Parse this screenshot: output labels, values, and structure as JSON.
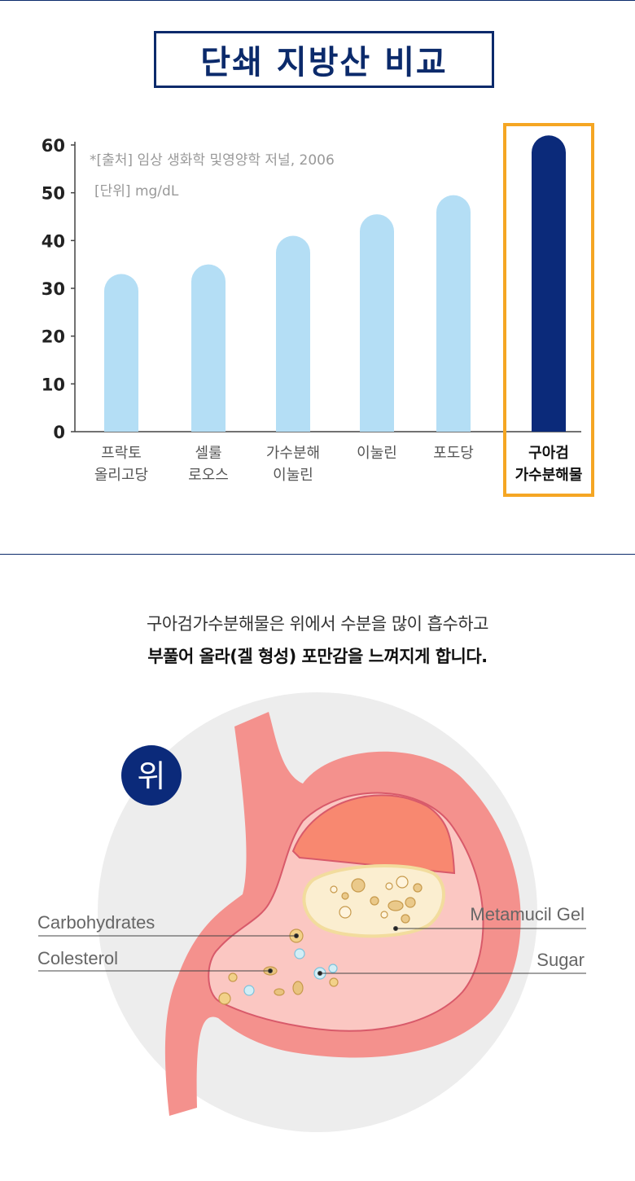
{
  "page_title": "단쇄 지방산 비교",
  "chart_data": {
    "type": "bar",
    "source_note": "*[출처] 임상 생화학 및영양학 저널, 2006",
    "unit_note": "[단위] mg/dL",
    "ylim": [
      0,
      60
    ],
    "yticks": [
      "0",
      "10",
      "20",
      "30",
      "40",
      "50",
      "60"
    ],
    "categories": [
      [
        "프락토",
        "올리고당"
      ],
      [
        "셀룰",
        "로오스"
      ],
      [
        "가수분해",
        "이눌린"
      ],
      [
        "이눌린"
      ],
      [
        "포도당"
      ],
      [
        "구아검",
        "가수분해물"
      ]
    ],
    "values": [
      33,
      35,
      41,
      45.5,
      49.5,
      62
    ],
    "highlight_index": 5,
    "colors": {
      "bar": "#b4def5",
      "highlight_bar": "#0b2a7a",
      "highlight_frame": "#f5a623",
      "axis": "#444444"
    }
  },
  "description": {
    "line1": "구아검가수분해물은 위에서 수분을 많이 흡수하고",
    "line2": "부풀어 올라(겔 형성) 포만감을 느껴지게 합니다."
  },
  "diagram": {
    "badge": "위",
    "labels": {
      "carbohydrates": "Carbohydrates",
      "colesterol": "Colesterol",
      "metamucil_gel": "Metamucil Gel",
      "sugar": "Sugar"
    },
    "colors": {
      "stomach": "#f4918d",
      "lining": "#fbc7c2",
      "fundus": "#f88870",
      "gel": "#fbeed0",
      "badge": "#0b2a7a",
      "backdrop": "#eeeeee"
    }
  }
}
